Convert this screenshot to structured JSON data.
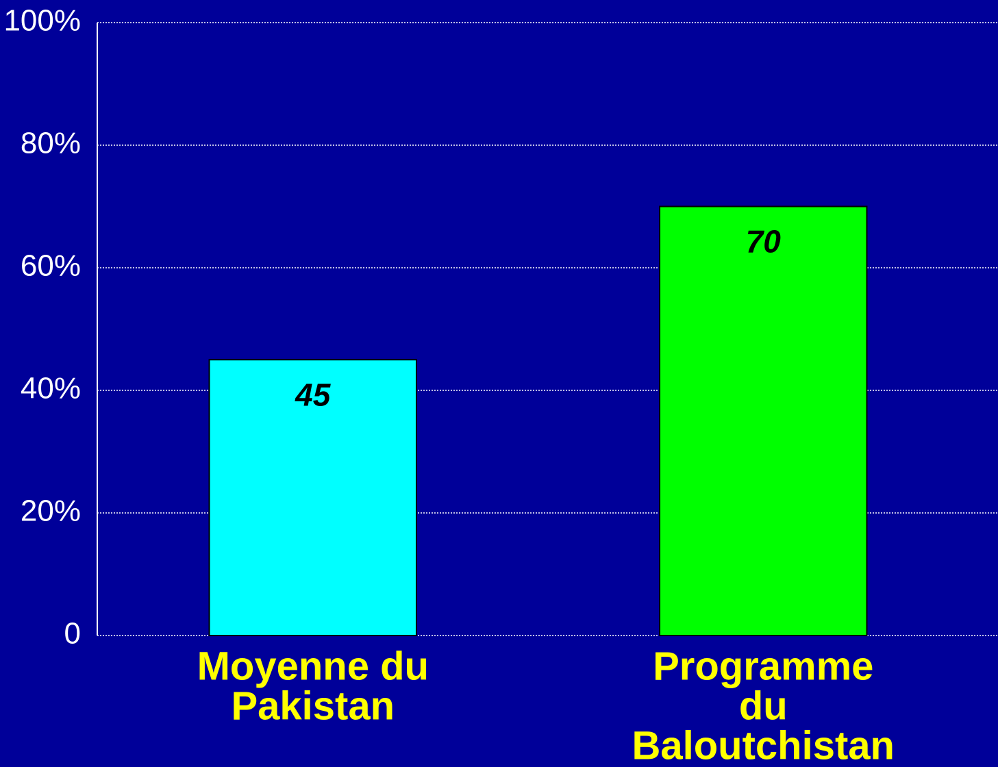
{
  "chart_data": {
    "type": "bar",
    "categories": [
      [
        "Moyenne du",
        "Pakistan"
      ],
      [
        "Programme",
        "du",
        "Baloutchistan"
      ]
    ],
    "values": [
      45,
      70
    ],
    "colors": [
      "#00ffff",
      "#00ff00"
    ],
    "background": "#000099",
    "ylim": [
      0,
      100
    ],
    "yticks": [
      0,
      {
        "value": 20,
        "label": "20%"
      },
      {
        "value": 40,
        "label": "40%"
      },
      {
        "value": 60,
        "label": "60%"
      },
      {
        "value": 80,
        "label": "80%"
      },
      {
        "value": 100,
        "label": "100%"
      }
    ],
    "grid": true
  }
}
